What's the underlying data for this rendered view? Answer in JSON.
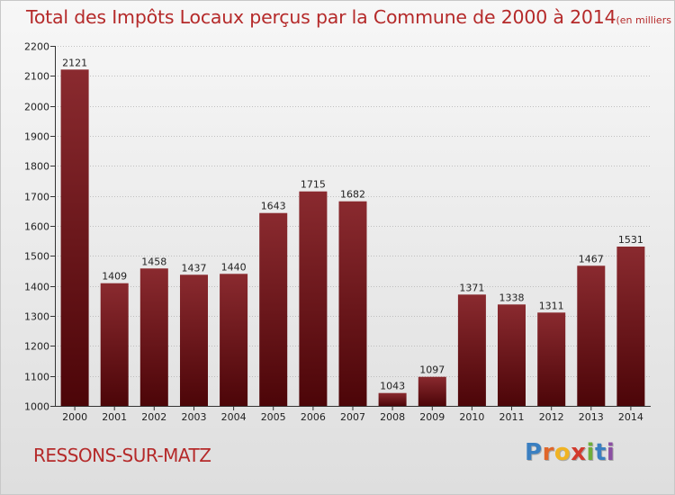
{
  "header": {
    "title": "Total des Impôts Locaux perçus par la Commune de 2000 à 2014",
    "subtitle": "(en milliers d'€)"
  },
  "footer": {
    "commune": "RESSONS-SUR-MATZ",
    "logo_letters": [
      "P",
      "r",
      "o",
      "x",
      "i",
      "t",
      "i"
    ],
    "logo_colors": [
      "#3a7fc1",
      "#e0662a",
      "#f0b323",
      "#d23a2d",
      "#6fae3a",
      "#3a7fc1",
      "#8b4fa3"
    ]
  },
  "colors": {
    "title": "#b52a2a",
    "bar_top": "#8a2a2f",
    "bar_bottom": "#4c0508",
    "grid": "#b0b0b0",
    "axis": "#333333"
  },
  "chart_data": {
    "type": "bar",
    "title": "Total des Impôts Locaux perçus par la Commune de 2000 à 2014",
    "xlabel": "",
    "ylabel": "",
    "categories": [
      "2000",
      "2001",
      "2002",
      "2003",
      "2004",
      "2005",
      "2006",
      "2007",
      "2008",
      "2009",
      "2010",
      "2011",
      "2012",
      "2013",
      "2014"
    ],
    "values": [
      2121,
      1409,
      1458,
      1437,
      1440,
      1643,
      1715,
      1682,
      1043,
      1097,
      1371,
      1338,
      1311,
      1467,
      1531
    ],
    "ylim": [
      1000,
      2200
    ],
    "yticks": [
      1000,
      1100,
      1200,
      1300,
      1400,
      1500,
      1600,
      1700,
      1800,
      1900,
      2000,
      2100,
      2200
    ],
    "grid": true
  }
}
